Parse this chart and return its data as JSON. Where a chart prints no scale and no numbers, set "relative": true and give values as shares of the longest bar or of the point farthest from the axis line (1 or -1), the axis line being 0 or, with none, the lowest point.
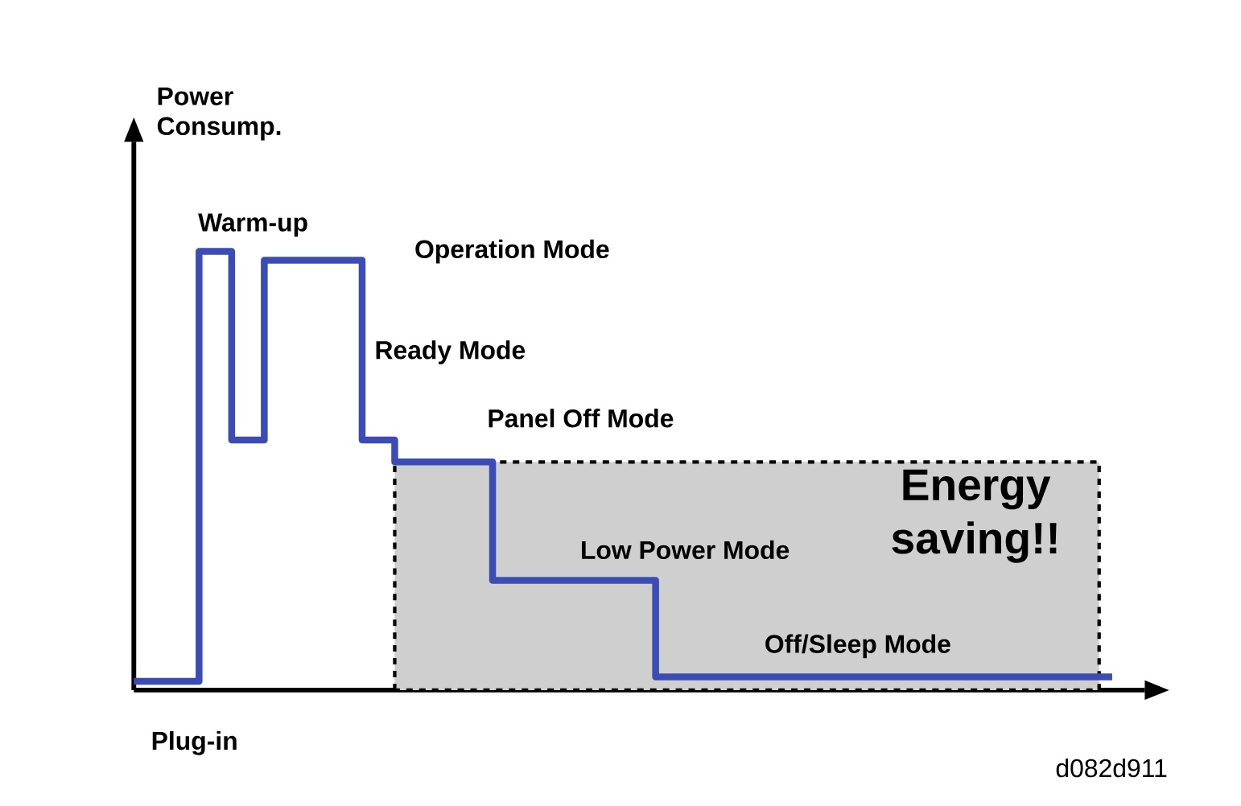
{
  "chart_data": {
    "type": "step",
    "relative": true,
    "ylabel": "Power Consump.",
    "tick_labels": false,
    "categories": [
      null,
      null,
      null,
      null,
      null,
      null,
      null,
      null,
      null,
      null,
      null,
      null,
      null,
      null,
      null,
      null,
      null,
      null,
      null,
      null,
      null,
      null,
      null,
      null,
      null,
      null,
      null,
      null,
      null,
      null,
      null
    ],
    "series": [
      {
        "color": "#3b4db5",
        "values": [
          0.02,
          0.02,
          1,
          0.57,
          0.98,
          0.98,
          0.98,
          0.57,
          0.52,
          0.52,
          0.52,
          0.25,
          0.25,
          0.25,
          0.25,
          0.25,
          0.03,
          0.03,
          0.03,
          0.03,
          0.03,
          0.03,
          0.03,
          0.03,
          0.03,
          0.03,
          0.03,
          0.03,
          0.03,
          0.03,
          0.03
        ]
      }
    ],
    "annotations": [
      "Warm-up",
      "Operation Mode",
      "Ready Mode",
      "Panel Off Mode",
      "Low Power  Mode",
      "Off/Sleep  Mode",
      "Energy saving!!",
      "Plug-in",
      "d082d911"
    ]
  }
}
